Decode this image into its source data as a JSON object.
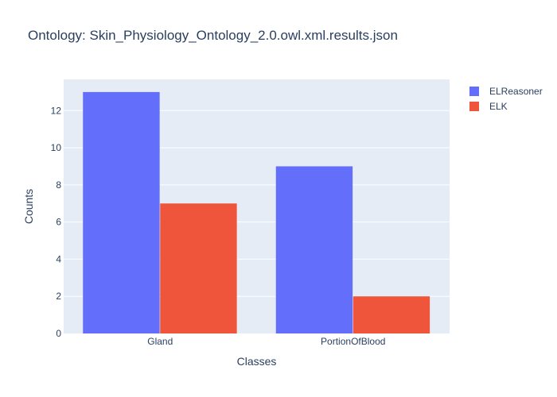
{
  "chart_data": {
    "type": "bar",
    "title": "Ontology: Skin_Physiology_Ontology_2.0.owl.xml.results.json",
    "xlabel": "Classes",
    "ylabel": "Counts",
    "categories": [
      "Gland",
      "PortionOfBlood"
    ],
    "series": [
      {
        "name": "ELReasoner",
        "values": [
          13,
          9
        ],
        "color": "#636efa"
      },
      {
        "name": "ELK",
        "values": [
          7,
          2
        ],
        "color": "#ef553b"
      }
    ],
    "ylim": [
      0,
      13.68
    ],
    "yticks": [
      0,
      2,
      4,
      6,
      8,
      10,
      12
    ],
    "grid": true,
    "legend_position": "top-right",
    "plot_bgcolor": "#e5ecf6"
  }
}
